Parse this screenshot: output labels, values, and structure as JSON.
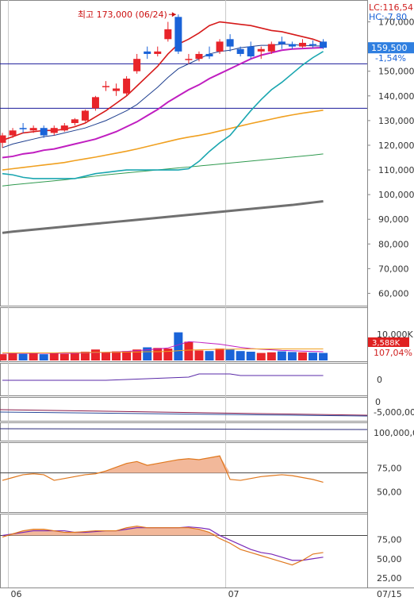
{
  "header": {
    "lc_label": "LC:116,54",
    "hc_label": "HC:-7,80",
    "high_annotation": "최고 173,000 (06/24)",
    "current_price": "159,500",
    "change_pct": "-1,54%"
  },
  "colors": {
    "up": "#e8242a",
    "down": "#1a63d8",
    "ma5": "#d61a1a",
    "ma10": "#1f3f8f",
    "ma20": "#c01ec0",
    "ma60": "#1aa6b0",
    "ma120": "#f0a020",
    "ma240": "#2f9a4f",
    "ma480": "#707070",
    "hline": "#1a1a9a",
    "price_badge": "#2f7fe0",
    "vol_badge": "#e02020",
    "osc_fill": "#f2b89a",
    "osc_line": "#e0781e",
    "osc_line2": "#7b2ab8"
  },
  "chart_data": {
    "type": "candlestick",
    "ylim": [
      55000,
      175000
    ],
    "y_ticks": [
      "170,000",
      "160,000",
      "150,000",
      "140,000",
      "130,000",
      "120,000",
      "110,000",
      "100,000",
      "90,000",
      "80,000",
      "70,000",
      "60,000"
    ],
    "y_tick_values": [
      170000,
      160000,
      150000,
      140000,
      130000,
      120000,
      110000,
      100000,
      90000,
      80000,
      70000,
      60000
    ],
    "x_labels": [
      "06",
      "07",
      "07/15"
    ],
    "hlines": [
      153000,
      135000
    ],
    "candles": [
      {
        "o": 121000,
        "h": 125000,
        "l": 119000,
        "c": 124000
      },
      {
        "o": 124000,
        "h": 127000,
        "l": 123000,
        "c": 126000
      },
      {
        "o": 127000,
        "h": 129000,
        "l": 125000,
        "c": 126500
      },
      {
        "o": 126000,
        "h": 128000,
        "l": 125000,
        "c": 127000
      },
      {
        "o": 127000,
        "h": 128000,
        "l": 123000,
        "c": 124000
      },
      {
        "o": 125000,
        "h": 128000,
        "l": 124000,
        "c": 127000
      },
      {
        "o": 126000,
        "h": 129000,
        "l": 125500,
        "c": 128000
      },
      {
        "o": 129000,
        "h": 131000,
        "l": 128000,
        "c": 130500
      },
      {
        "o": 130000,
        "h": 134500,
        "l": 129500,
        "c": 134000
      },
      {
        "o": 135000,
        "h": 140000,
        "l": 134000,
        "c": 139500
      },
      {
        "o": 144000,
        "h": 146000,
        "l": 142000,
        "c": 144000
      },
      {
        "o": 142000,
        "h": 145000,
        "l": 140000,
        "c": 143000
      },
      {
        "o": 141000,
        "h": 148000,
        "l": 140000,
        "c": 147000
      },
      {
        "o": 150000,
        "h": 157000,
        "l": 149000,
        "c": 155000
      },
      {
        "o": 158000,
        "h": 160000,
        "l": 155000,
        "c": 157000
      },
      {
        "o": 157000,
        "h": 160000,
        "l": 156000,
        "c": 158000
      },
      {
        "o": 163000,
        "h": 170000,
        "l": 162000,
        "c": 167000
      },
      {
        "o": 172000,
        "h": 173000,
        "l": 157000,
        "c": 158000
      },
      {
        "o": 155000,
        "h": 157000,
        "l": 153000,
        "c": 155000
      },
      {
        "o": 155000,
        "h": 158000,
        "l": 154000,
        "c": 157000
      },
      {
        "o": 157000,
        "h": 160000,
        "l": 155000,
        "c": 156000
      },
      {
        "o": 158000,
        "h": 163000,
        "l": 157000,
        "c": 162000
      },
      {
        "o": 163000,
        "h": 165000,
        "l": 158000,
        "c": 160000
      },
      {
        "o": 159000,
        "h": 160000,
        "l": 156000,
        "c": 157000
      },
      {
        "o": 160000,
        "h": 162000,
        "l": 155000,
        "c": 156000
      },
      {
        "o": 158000,
        "h": 160000,
        "l": 155000,
        "c": 159000
      },
      {
        "o": 158000,
        "h": 162000,
        "l": 157000,
        "c": 161000
      },
      {
        "o": 162000,
        "h": 164000,
        "l": 159000,
        "c": 161000
      },
      {
        "o": 161000,
        "h": 162000,
        "l": 159000,
        "c": 160000
      },
      {
        "o": 160000,
        "h": 163000,
        "l": 159500,
        "c": 161500
      },
      {
        "o": 161000,
        "h": 162500,
        "l": 159500,
        "c": 160500
      },
      {
        "o": 162000,
        "h": 163000,
        "l": 159000,
        "c": 159500
      }
    ],
    "ma5": [
      122000,
      123500,
      125000,
      125500,
      126000,
      126000,
      126500,
      127500,
      129000,
      131500,
      134000,
      137000,
      140000,
      144000,
      148000,
      152000,
      157000,
      161000,
      163000,
      165500,
      168500,
      170000,
      169500,
      169000,
      168500,
      167500,
      166500,
      166000,
      165000,
      164000,
      163000,
      161500
    ],
    "ma10": [
      119000,
      120500,
      121500,
      122500,
      123500,
      124000,
      125000,
      126000,
      127000,
      128500,
      130000,
      132000,
      134000,
      136500,
      140000,
      143500,
      147500,
      151000,
      153000,
      155000,
      157000,
      158000,
      158500,
      159500,
      160000,
      160500,
      160500,
      161000,
      160800,
      160500,
      160300,
      160200
    ],
    "ma20": [
      115000,
      115500,
      116500,
      117000,
      118000,
      118500,
      119500,
      120500,
      121500,
      122500,
      124000,
      125500,
      127500,
      129500,
      132000,
      134500,
      137500,
      140000,
      142500,
      144500,
      147000,
      149000,
      151000,
      153000,
      155000,
      156500,
      157500,
      158500,
      159000,
      159200,
      159400,
      159600
    ],
    "ma60": [
      108500,
      108000,
      107000,
      106500,
      106500,
      106500,
      106500,
      106500,
      107500,
      108500,
      109000,
      109500,
      110000,
      110000,
      110000,
      110000,
      110000,
      110000,
      110500,
      113500,
      117500,
      121000,
      124000,
      129000,
      134000,
      138500,
      142500,
      145500,
      149000,
      152500,
      155500,
      158000
    ],
    "ma120": [
      110000,
      110500,
      111000,
      111500,
      112000,
      112500,
      113000,
      113800,
      114500,
      115200,
      116000,
      116800,
      117600,
      118500,
      119500,
      120500,
      121500,
      122500,
      123300,
      124000,
      124800,
      125800,
      126800,
      127800,
      128800,
      129700,
      130600,
      131500,
      132300,
      133000,
      133600,
      134200
    ],
    "ma240": [
      103500,
      104000,
      104400,
      104800,
      105200,
      105600,
      106000,
      106500,
      107000,
      107500,
      108000,
      108400,
      108800,
      109200,
      109600,
      110000,
      110400,
      110800,
      111200,
      111600,
      112000,
      112400,
      112800,
      113200,
      113600,
      114000,
      114400,
      114800,
      115200,
      115600,
      116000,
      116500
    ],
    "ma480": [
      84500,
      85000,
      85400,
      85800,
      86200,
      86600,
      87000,
      87400,
      87800,
      88200,
      88600,
      89000,
      89400,
      89800,
      90200,
      90600,
      91000,
      91400,
      91800,
      92200,
      92600,
      93000,
      93400,
      93800,
      94200,
      94600,
      95000,
      95400,
      95800,
      96300,
      96800,
      97300
    ],
    "volume": {
      "badge": "3,588K",
      "ratio": "107,04%",
      "tick": "10,000K",
      "ylim": [
        0,
        15000000
      ],
      "values": [
        2000000,
        2200000,
        2100000,
        2400000,
        2000000,
        2300000,
        2100000,
        2600000,
        2800000,
        3500000,
        2600000,
        2900000,
        3000000,
        3500000,
        4200000,
        4000000,
        3800000,
        9000000,
        6000000,
        3200000,
        3000000,
        3800000,
        3500000,
        3000000,
        2800000,
        2400000,
        2600000,
        2900000,
        2700000,
        2600000,
        2500000,
        2400000
      ],
      "ma5": [
        2300000,
        2300000,
        2300000,
        2300000,
        2300000,
        2300000,
        2300000,
        2300000,
        2400000,
        2500000,
        2600000,
        2700000,
        2900000,
        3100000,
        3400000,
        3700000,
        4000000,
        5000000,
        6000000,
        5800000,
        5500000,
        5200000,
        4700000,
        4200000,
        3800000,
        3600000,
        3400000,
        3200000,
        3100000,
        3000000,
        2900000,
        2800000
      ],
      "ma20": [
        2400000,
        2400000,
        2400000,
        2400000,
        2400000,
        2400000,
        2500000,
        2500000,
        2500000,
        2600000,
        2600000,
        2600000,
        2700000,
        2700000,
        2800000,
        2800000,
        2900000,
        3100000,
        3300000,
        3400000,
        3500000,
        3600000,
        3600000,
        3700000,
        3700000,
        3700000,
        3700000,
        3700000,
        3700000,
        3700000,
        3700000,
        3700000
      ]
    },
    "panel3": {
      "tick": "0"
    },
    "panel4": {
      "ticks": [
        "0",
        "-5,000,00"
      ]
    },
    "panel5": {
      "tick": "100,000,0"
    },
    "osc1": {
      "ylim": [
        30,
        100
      ],
      "ticks": [
        "75,00",
        "50,00"
      ],
      "tick_values": [
        75,
        50
      ],
      "hline": 70,
      "values": [
        62,
        65,
        68,
        69,
        68,
        62,
        64,
        66,
        68,
        69,
        72,
        76,
        80,
        82,
        78,
        80,
        82,
        84,
        85,
        84,
        86,
        88,
        63,
        62,
        64,
        66,
        67,
        68,
        67,
        65,
        63,
        60
      ]
    },
    "osc2": {
      "ylim": [
        15,
        105
      ],
      "ticks": [
        "75,00",
        "50,00",
        "25,00"
      ],
      "tick_values": [
        75,
        50,
        25
      ],
      "hline": 80,
      "k": [
        78,
        82,
        86,
        88,
        88,
        86,
        84,
        84,
        85,
        86,
        86,
        86,
        90,
        92,
        90,
        90,
        90,
        90,
        90,
        88,
        84,
        76,
        70,
        62,
        58,
        54,
        50,
        46,
        42,
        48,
        56,
        58
      ],
      "d": [
        80,
        82,
        84,
        86,
        86,
        86,
        86,
        84,
        84,
        85,
        86,
        86,
        88,
        90,
        90,
        90,
        90,
        90,
        91,
        90,
        88,
        80,
        74,
        68,
        62,
        58,
        56,
        52,
        48,
        48,
        50,
        52
      ]
    }
  }
}
